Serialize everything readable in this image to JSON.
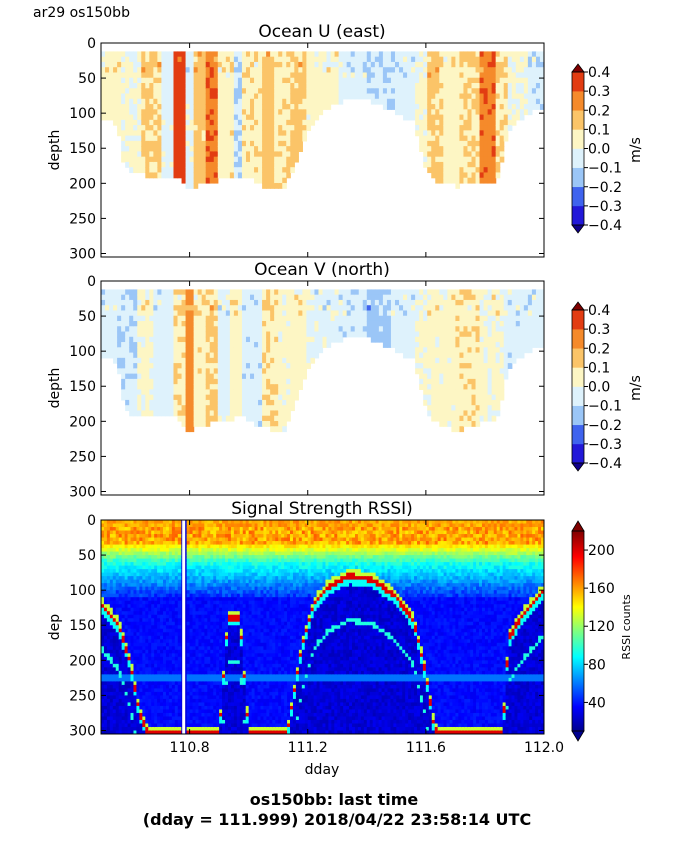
{
  "figure": {
    "corner_label": "ar29 os150bb",
    "footer_line1": "os150bb: last time",
    "footer_line2": "(dday = 111.999) 2018/04/22 23:58:14 UTC"
  },
  "chart_data": [
    {
      "type": "heatmap",
      "title": "Ocean U (east)",
      "ylabel": "depth",
      "xlabel": "",
      "xlim": [
        110.5,
        112.0
      ],
      "ylim": [
        305,
        0
      ],
      "y_ticks": [
        "0",
        "50",
        "100",
        "150",
        "200",
        "250",
        "300"
      ],
      "x_ticks": [
        "110.8",
        "111.2",
        "111.6",
        "112.0"
      ],
      "x_ticklabels_shown": false,
      "colorbar": {
        "label": "m/s",
        "range": [
          -0.4,
          0.4
        ],
        "ticks": [
          "0.4",
          "0.3",
          "0.2",
          "0.1",
          "0.0",
          "−0.1",
          "−0.2",
          "−0.3",
          "−0.4"
        ],
        "colors": [
          "#2218d8",
          "#3f63ee",
          "#9bc6f7",
          "#def2fc",
          "#fdf6c4",
          "#fbc468",
          "#f58a2b",
          "#e23c12"
        ]
      },
      "coverage_bottom": [
        [
          110.5,
          105
        ],
        [
          110.54,
          110
        ],
        [
          110.56,
          120
        ],
        [
          110.57,
          165
        ],
        [
          110.6,
          180
        ],
        [
          110.66,
          185
        ],
        [
          110.75,
          185
        ],
        [
          110.8,
          205
        ],
        [
          110.86,
          195
        ],
        [
          110.92,
          190
        ],
        [
          110.98,
          185
        ],
        [
          111.05,
          200
        ],
        [
          111.12,
          205
        ],
        [
          111.16,
          165
        ],
        [
          111.2,
          125
        ],
        [
          111.26,
          90
        ],
        [
          111.34,
          75
        ],
        [
          111.42,
          80
        ],
        [
          111.5,
          95
        ],
        [
          111.56,
          110
        ],
        [
          111.6,
          180
        ],
        [
          111.64,
          195
        ],
        [
          111.7,
          200
        ],
        [
          111.78,
          195
        ],
        [
          111.84,
          195
        ],
        [
          111.88,
          120
        ],
        [
          111.92,
          105
        ],
        [
          111.96,
          95
        ],
        [
          112.0,
          90
        ]
      ],
      "bands": [
        [
          110.5,
          110.57,
          0.06
        ],
        [
          110.57,
          110.64,
          0.01
        ],
        [
          110.64,
          110.7,
          0.11
        ],
        [
          110.7,
          110.75,
          -0.04
        ],
        [
          110.75,
          110.78,
          0.36
        ],
        [
          110.78,
          110.82,
          -0.03
        ],
        [
          110.82,
          110.86,
          0.14
        ],
        [
          110.86,
          110.89,
          0.28
        ],
        [
          110.89,
          110.95,
          0.06
        ],
        [
          110.95,
          110.98,
          -0.08
        ],
        [
          110.98,
          111.04,
          0.08
        ],
        [
          111.04,
          111.09,
          0.15
        ],
        [
          111.09,
          111.14,
          0.08
        ],
        [
          111.14,
          111.2,
          0.12
        ],
        [
          111.2,
          111.3,
          0.04
        ],
        [
          111.3,
          111.4,
          -0.05
        ],
        [
          111.4,
          111.5,
          -0.09
        ],
        [
          111.5,
          111.56,
          -0.05
        ],
        [
          111.56,
          111.6,
          0.03
        ],
        [
          111.6,
          111.66,
          0.12
        ],
        [
          111.66,
          111.72,
          0.05
        ],
        [
          111.72,
          111.78,
          0.1
        ],
        [
          111.78,
          111.84,
          0.27
        ],
        [
          111.84,
          111.88,
          0.09
        ],
        [
          111.88,
          111.94,
          0.01
        ],
        [
          111.94,
          112.0,
          -0.07
        ]
      ]
    },
    {
      "type": "heatmap",
      "title": "Ocean V (north)",
      "ylabel": "depth",
      "xlabel": "",
      "xlim": [
        110.5,
        112.0
      ],
      "ylim": [
        305,
        0
      ],
      "y_ticks": [
        "0",
        "50",
        "100",
        "150",
        "200",
        "250",
        "300"
      ],
      "x_ticks": [
        "110.8",
        "111.2",
        "111.6",
        "112.0"
      ],
      "x_ticklabels_shown": false,
      "colorbar": {
        "label": "m/s",
        "range": [
          -0.4,
          0.4
        ],
        "ticks": [
          "0.4",
          "0.3",
          "0.2",
          "0.1",
          "0.0",
          "−0.1",
          "−0.2",
          "−0.3",
          "−0.4"
        ],
        "colors": [
          "#2218d8",
          "#3f63ee",
          "#9bc6f7",
          "#def2fc",
          "#fdf6c4",
          "#fbc468",
          "#f58a2b",
          "#e23c12"
        ]
      },
      "coverage_bottom": [
        [
          110.5,
          105
        ],
        [
          110.54,
          110
        ],
        [
          110.56,
          120
        ],
        [
          110.57,
          165
        ],
        [
          110.6,
          185
        ],
        [
          110.66,
          190
        ],
        [
          110.75,
          190
        ],
        [
          110.8,
          210
        ],
        [
          110.86,
          200
        ],
        [
          110.92,
          195
        ],
        [
          110.98,
          190
        ],
        [
          111.05,
          205
        ],
        [
          111.12,
          210
        ],
        [
          111.16,
          165
        ],
        [
          111.2,
          125
        ],
        [
          111.26,
          90
        ],
        [
          111.34,
          75
        ],
        [
          111.42,
          80
        ],
        [
          111.5,
          95
        ],
        [
          111.56,
          110
        ],
        [
          111.6,
          180
        ],
        [
          111.64,
          200
        ],
        [
          111.7,
          210
        ],
        [
          111.78,
          200
        ],
        [
          111.84,
          195
        ],
        [
          111.88,
          120
        ],
        [
          111.92,
          105
        ],
        [
          111.96,
          95
        ],
        [
          112.0,
          90
        ]
      ],
      "bands": [
        [
          110.5,
          110.56,
          -0.04
        ],
        [
          110.56,
          110.62,
          -0.08
        ],
        [
          110.62,
          110.68,
          0.02
        ],
        [
          110.68,
          110.75,
          -0.05
        ],
        [
          110.75,
          110.78,
          0.08
        ],
        [
          110.78,
          110.82,
          0.25
        ],
        [
          110.82,
          110.86,
          0.06
        ],
        [
          110.86,
          110.9,
          0.12
        ],
        [
          110.9,
          110.94,
          -0.04
        ],
        [
          110.94,
          110.98,
          0.05
        ],
        [
          110.98,
          111.04,
          -0.06
        ],
        [
          111.04,
          111.1,
          0.09
        ],
        [
          111.1,
          111.14,
          0.03
        ],
        [
          111.14,
          111.2,
          0.05
        ],
        [
          111.2,
          111.3,
          -0.03
        ],
        [
          111.3,
          111.4,
          -0.07
        ],
        [
          111.4,
          111.48,
          -0.14
        ],
        [
          111.48,
          111.56,
          -0.05
        ],
        [
          111.56,
          111.62,
          0.02
        ],
        [
          111.62,
          111.7,
          0.04
        ],
        [
          111.7,
          111.78,
          0.08
        ],
        [
          111.78,
          111.86,
          0.02
        ],
        [
          111.86,
          111.92,
          -0.06
        ],
        [
          111.92,
          112.0,
          -0.05
        ]
      ]
    },
    {
      "type": "heatmap",
      "title": "Signal Strength RSSI)",
      "ylabel": "dep",
      "xlabel": "dday",
      "xlim": [
        110.5,
        112.0
      ],
      "ylim": [
        305,
        0
      ],
      "y_ticks": [
        "0",
        "50",
        "100",
        "150",
        "200",
        "250",
        "300"
      ],
      "x_ticks": [
        "110.8",
        "111.2",
        "111.6",
        "112.0"
      ],
      "x_ticklabels_shown": true,
      "gap_x": 110.78,
      "surface_layer_depth": 35,
      "colorbar": {
        "label": "RSSI counts",
        "range": [
          10,
          220
        ],
        "ticks": [
          "200",
          "160",
          "120",
          "80",
          "40"
        ]
      },
      "bottom_echo": [
        [
          110.5,
          120
        ],
        [
          110.53,
          135
        ],
        [
          110.56,
          150
        ],
        [
          110.6,
          205
        ],
        [
          110.63,
          275
        ],
        [
          110.66,
          305
        ],
        [
          110.9,
          305
        ],
        [
          110.93,
          140
        ],
        [
          110.97,
          140
        ],
        [
          111.0,
          305
        ],
        [
          111.13,
          305
        ],
        [
          111.18,
          180
        ],
        [
          111.22,
          120
        ],
        [
          111.27,
          95
        ],
        [
          111.34,
          80
        ],
        [
          111.42,
          85
        ],
        [
          111.5,
          110
        ],
        [
          111.56,
          145
        ],
        [
          111.6,
          220
        ],
        [
          111.63,
          300
        ],
        [
          111.66,
          305
        ],
        [
          111.86,
          305
        ],
        [
          111.88,
          170
        ],
        [
          111.92,
          140
        ],
        [
          111.96,
          120
        ],
        [
          112.0,
          100
        ]
      ]
    }
  ]
}
